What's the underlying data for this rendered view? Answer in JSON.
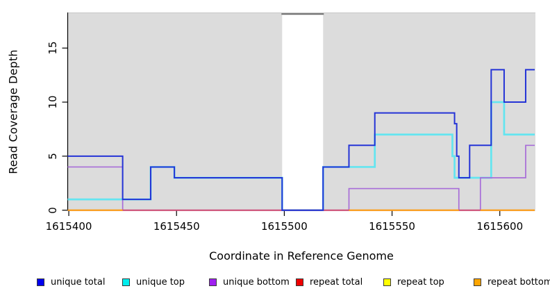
{
  "chart_data": {
    "type": "line",
    "subtype": "step-after-coverage-plot",
    "title": "",
    "xlabel": "Coordinate in Reference Genome",
    "ylabel": "Read Coverage Depth",
    "xlim": [
      1615399.5,
      1615616.2
    ],
    "ylim": [
      0,
      18.31
    ],
    "x_ticks": [
      1615400,
      1615450,
      1615500,
      1615550,
      1615600
    ],
    "y_ticks": [
      0,
      5,
      10,
      15
    ],
    "grid": "off",
    "panel_background": "#dcdcdc",
    "legend_position": "bottom",
    "masked_region": {
      "start": 1615499,
      "end": 1615518,
      "fill": "#ffffff",
      "offscale_bar_color": "#6e6e6e"
    },
    "series": [
      {
        "name": "unique total",
        "color": "#2433d6",
        "legend_color": "#0000EE",
        "width": 2,
        "points": [
          [
            1615399.5,
            5
          ],
          [
            1615425,
            1
          ],
          [
            1615438,
            4
          ],
          [
            1615449,
            3
          ],
          [
            1615499,
            0
          ],
          [
            1615518,
            4
          ],
          [
            1615530,
            6
          ],
          [
            1615542,
            9
          ],
          [
            1615579,
            8
          ],
          [
            1615580,
            5
          ],
          [
            1615581,
            3
          ],
          [
            1615586,
            6
          ],
          [
            1615596,
            13
          ],
          [
            1615602,
            10
          ],
          [
            1615612,
            13
          ]
        ]
      },
      {
        "name": "unique top",
        "color": "#63e5f0",
        "legend_color": "#00EEEE",
        "width": 2.7,
        "points": [
          [
            1615399.5,
            1
          ],
          [
            1615438,
            4
          ],
          [
            1615449,
            3
          ],
          [
            1615499,
            0
          ],
          [
            1615518,
            4
          ],
          [
            1615542,
            7
          ],
          [
            1615578,
            5
          ],
          [
            1615579,
            3
          ],
          [
            1615596,
            10
          ],
          [
            1615602,
            7
          ]
        ]
      },
      {
        "name": "unique bottom",
        "color": "#a76cd8",
        "legend_color": "#A020F0",
        "width": 1.7,
        "points": [
          [
            1615399.5,
            4
          ],
          [
            1615425,
            0
          ],
          [
            1615530,
            2
          ],
          [
            1615581,
            0
          ],
          [
            1615591,
            3
          ],
          [
            1615612,
            6
          ]
        ]
      },
      {
        "name": "repeat total",
        "color": "#cf4a73",
        "legend_color": "#EE0000",
        "width": 2,
        "points": [
          [
            1615399.5,
            0
          ]
        ]
      },
      {
        "name": "repeat top",
        "color": "#f2e441",
        "legend_color": "#FFFF00",
        "width": 1.4,
        "points": [
          [
            1615399.5,
            0
          ]
        ]
      },
      {
        "name": "repeat bottom",
        "color": "#ffa416",
        "legend_color": "#FFA500",
        "width": 2.2,
        "value": 0,
        "segments": [
          [
            1615399.5,
            1615425
          ],
          [
            1615530,
            1615581
          ],
          [
            1615591,
            1615616.2
          ]
        ]
      }
    ]
  },
  "legend": {
    "items": [
      {
        "label": "unique total",
        "color": "#0000EE"
      },
      {
        "label": "unique top",
        "color": "#00EEEE"
      },
      {
        "label": "unique bottom",
        "color": "#A020F0"
      },
      {
        "label": "repeat total",
        "color": "#EE0000"
      },
      {
        "label": "repeat top",
        "color": "#FFFF00"
      },
      {
        "label": "repeat bottom",
        "color": "#FFA500"
      }
    ]
  }
}
